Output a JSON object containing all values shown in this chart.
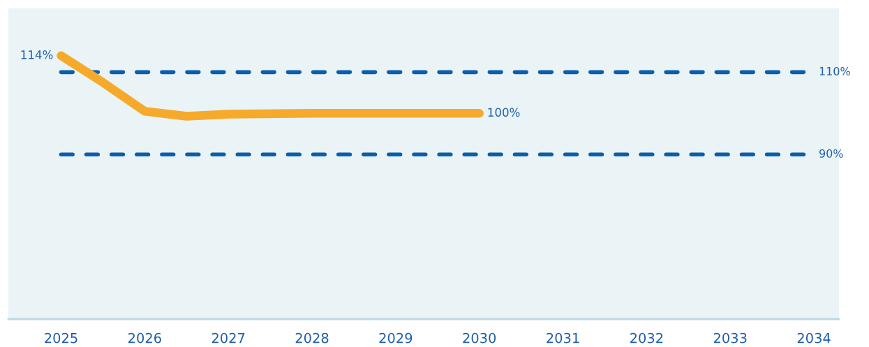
{
  "chart_data": {
    "type": "line",
    "x": [
      2025,
      2025.5,
      2026,
      2026.5,
      2027,
      2028,
      2029,
      2030
    ],
    "series": [
      {
        "color": "#f5aa2c",
        "values": [
          114,
          107.5,
          100.5,
          99.3,
          99.8,
          100,
          100,
          100
        ],
        "value_labels": [
          "114%",
          null,
          null,
          null,
          null,
          null,
          null,
          "100%"
        ]
      }
    ],
    "xlim": [
      2024.37,
      2034.3
    ],
    "xticks": [
      2025,
      2026,
      2027,
      2028,
      2029,
      2030,
      2031,
      2032,
      2033,
      2034
    ],
    "ylim": [
      50,
      125.5
    ],
    "tick_labels": "x",
    "grid": false,
    "marker": "none",
    "line_style": "solid",
    "ref_lines": [
      {
        "axis": "y",
        "value": 110,
        "label": "110%",
        "color": "#0a5eab",
        "line_style": "dashed"
      },
      {
        "axis": "y",
        "value": 90,
        "label": "90%",
        "color": "#0a5eab",
        "line_style": "dashed"
      }
    ]
  }
}
